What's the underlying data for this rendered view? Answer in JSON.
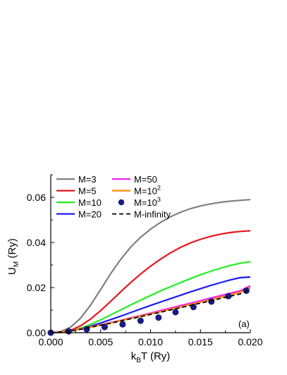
{
  "chart_data": {
    "type": "line",
    "panel_label": "(a)",
    "xlabel": {
      "main": "k",
      "sub": "B",
      "rest": "T (Ry)"
    },
    "ylabel": {
      "main": "U",
      "sub": "M",
      "rest": " (Ry)"
    },
    "xlim": [
      0.0,
      0.02
    ],
    "ylim": [
      0.0,
      0.07
    ],
    "xticks": [
      0.0,
      0.005,
      0.01,
      0.015,
      0.02
    ],
    "xtick_labels": [
      "0.000",
      "0.005",
      "0.010",
      "0.015",
      "0.020"
    ],
    "yticks": [
      0.0,
      0.02,
      0.04,
      0.06
    ],
    "ytick_labels": [
      "0.00",
      "0.02",
      "0.04",
      "0.06"
    ],
    "grid": false,
    "legend_placement": "top-left",
    "x": [
      0.0,
      0.001,
      0.002,
      0.003,
      0.004,
      0.005,
      0.006,
      0.007,
      0.008,
      0.009,
      0.01,
      0.011,
      0.012,
      0.013,
      0.014,
      0.015,
      0.016,
      0.017,
      0.018,
      0.019,
      0.02
    ],
    "series": [
      {
        "name": "M=3",
        "color": "#808080",
        "style": "solid",
        "values": [
          0.0,
          0.0005,
          0.0025,
          0.0065,
          0.0123,
          0.0192,
          0.0262,
          0.0325,
          0.0379,
          0.0423,
          0.0459,
          0.0489,
          0.0514,
          0.0534,
          0.055,
          0.0562,
          0.0571,
          0.0578,
          0.0583,
          0.0587,
          0.059
        ]
      },
      {
        "name": "M=5",
        "color": "#e8151b",
        "style": "solid",
        "values": [
          0.0,
          0.0002,
          0.0011,
          0.0031,
          0.0061,
          0.0098,
          0.0139,
          0.0181,
          0.0222,
          0.026,
          0.0295,
          0.0326,
          0.0354,
          0.0378,
          0.0398,
          0.0414,
          0.0427,
          0.0437,
          0.0444,
          0.0449,
          0.0452
        ]
      },
      {
        "name": "M=10",
        "color": "#22ee22",
        "style": "solid",
        "values": [
          0.0,
          0.0002,
          0.0008,
          0.002,
          0.0037,
          0.0057,
          0.0079,
          0.0101,
          0.0123,
          0.0144,
          0.0165,
          0.0185,
          0.0204,
          0.0222,
          0.024,
          0.0257,
          0.0272,
          0.0286,
          0.0298,
          0.0308,
          0.0315
        ]
      },
      {
        "name": "M=20",
        "color": "#1c1cf0",
        "style": "solid",
        "values": [
          0.0,
          0.0002,
          0.0008,
          0.0017,
          0.0029,
          0.0043,
          0.0058,
          0.0073,
          0.0089,
          0.0105,
          0.0121,
          0.0136,
          0.0151,
          0.0166,
          0.0181,
          0.0195,
          0.0209,
          0.0222,
          0.0234,
          0.0244,
          0.0247
        ]
      },
      {
        "name": "M=50",
        "color": "#ee22ee",
        "style": "solid",
        "values": [
          0.0,
          0.0003,
          0.0009,
          0.0017,
          0.0026,
          0.0035,
          0.0045,
          0.0055,
          0.0066,
          0.0076,
          0.0087,
          0.0098,
          0.0109,
          0.012,
          0.0131,
          0.0142,
          0.0153,
          0.0164,
          0.0175,
          0.0186,
          0.0208
        ]
      },
      {
        "name": "M=10",
        "name_sup": "2",
        "color": "#ff8c00",
        "style": "solid",
        "values": [
          0.0,
          0.0003,
          0.0009,
          0.0016,
          0.0025,
          0.0034,
          0.0043,
          0.0053,
          0.0063,
          0.0073,
          0.0083,
          0.0093,
          0.0104,
          0.0114,
          0.0125,
          0.0135,
          0.0146,
          0.0157,
          0.0168,
          0.0179,
          0.02
        ]
      },
      {
        "name": "M=10",
        "name_sup": "3",
        "color": "#1a1a8c",
        "style": "markers",
        "x": [
          0.0,
          0.0018,
          0.0036,
          0.0054,
          0.0072,
          0.009,
          0.0108,
          0.0125,
          0.0143,
          0.0161,
          0.0178,
          0.0196
        ],
        "values": [
          0.0,
          0.0006,
          0.0015,
          0.0025,
          0.0037,
          0.0053,
          0.0067,
          0.0091,
          0.0114,
          0.0138,
          0.0162,
          0.0186
        ]
      },
      {
        "name": "M-infinity",
        "color": "#000000",
        "style": "dashed",
        "values": [
          0.0,
          0.0003,
          0.0008,
          0.0015,
          0.0024,
          0.0033,
          0.0042,
          0.0052,
          0.0062,
          0.0071,
          0.0081,
          0.0091,
          0.0101,
          0.0111,
          0.0121,
          0.0131,
          0.0141,
          0.0152,
          0.0162,
          0.0172,
          0.0193
        ]
      }
    ]
  }
}
